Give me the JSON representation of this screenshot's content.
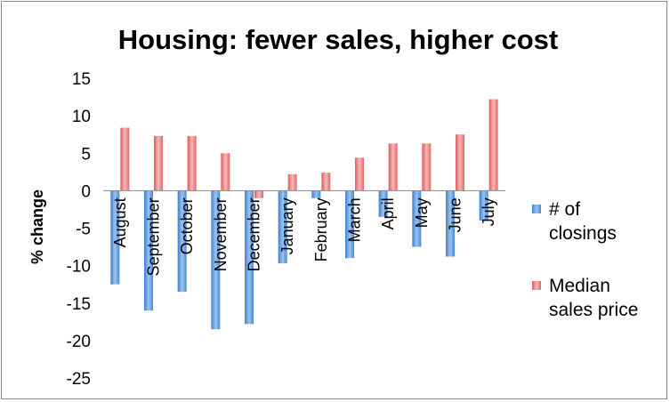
{
  "chart_data": {
    "type": "bar",
    "title": "Housing: fewer sales, higher cost",
    "ylabel": "% change",
    "xlabel": "",
    "ylim": [
      -25,
      15
    ],
    "yticks": [
      15,
      10,
      5,
      0,
      -5,
      -10,
      -15,
      -20,
      -25
    ],
    "categories": [
      "August",
      "September",
      "October",
      "November",
      "December",
      "January",
      "February",
      "March",
      "April",
      "May",
      "June",
      "July"
    ],
    "series": [
      {
        "name": "# of closings",
        "color": "#5b9bd5",
        "values": [
          -12.5,
          -16,
          -13.5,
          -18.5,
          -17.8,
          -9.7,
          -1,
          -9,
          -3.5,
          -7.5,
          -8.8,
          -4
        ]
      },
      {
        "name": "Median sales price",
        "color": "#e46c6c",
        "values": [
          8.4,
          7.3,
          7.3,
          5,
          -1,
          2.2,
          2.4,
          4.4,
          6.3,
          6.3,
          7.5,
          12.2
        ]
      }
    ],
    "grid": false,
    "legend": "right",
    "legend_lines": [
      [
        "# of",
        "closings"
      ],
      [
        "Median",
        "sales price"
      ]
    ]
  }
}
